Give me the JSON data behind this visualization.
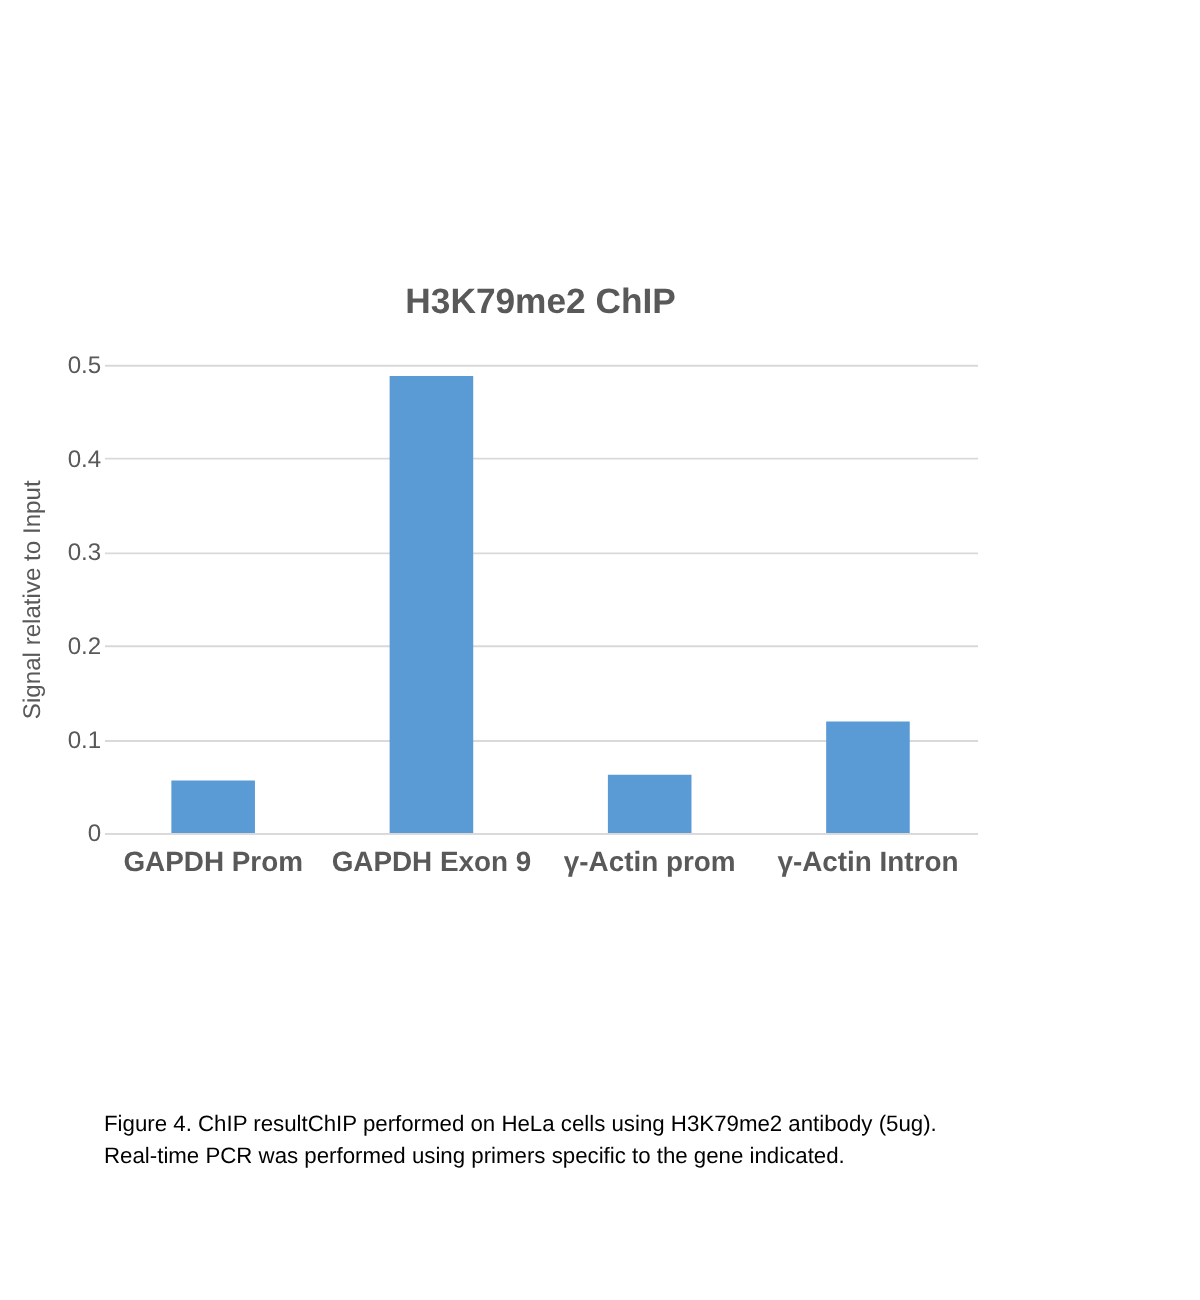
{
  "chart_data": {
    "type": "bar",
    "title": "H3K79me2 ChIP",
    "ylabel": "Signal relative to Input",
    "categories": [
      "GAPDH Prom",
      "GAPDH Exon 9",
      "γ-Actin prom",
      "γ-Actin Intron"
    ],
    "values": [
      0.056,
      0.488,
      0.062,
      0.119
    ],
    "color": "#5b9bd5",
    "ylim": [
      0,
      0.5
    ],
    "yticks": [
      {
        "value": 0,
        "label": "0"
      },
      0.1,
      0.2,
      0.3,
      0.4,
      0.5
    ],
    "grid": "y",
    "annotations": [
      "Figure 4. ChIP resultChIP performed on HeLa cells using H3K79me2 antibody (5ug).",
      "Real-time PCR was performed using primers specific to the gene indicated."
    ]
  }
}
